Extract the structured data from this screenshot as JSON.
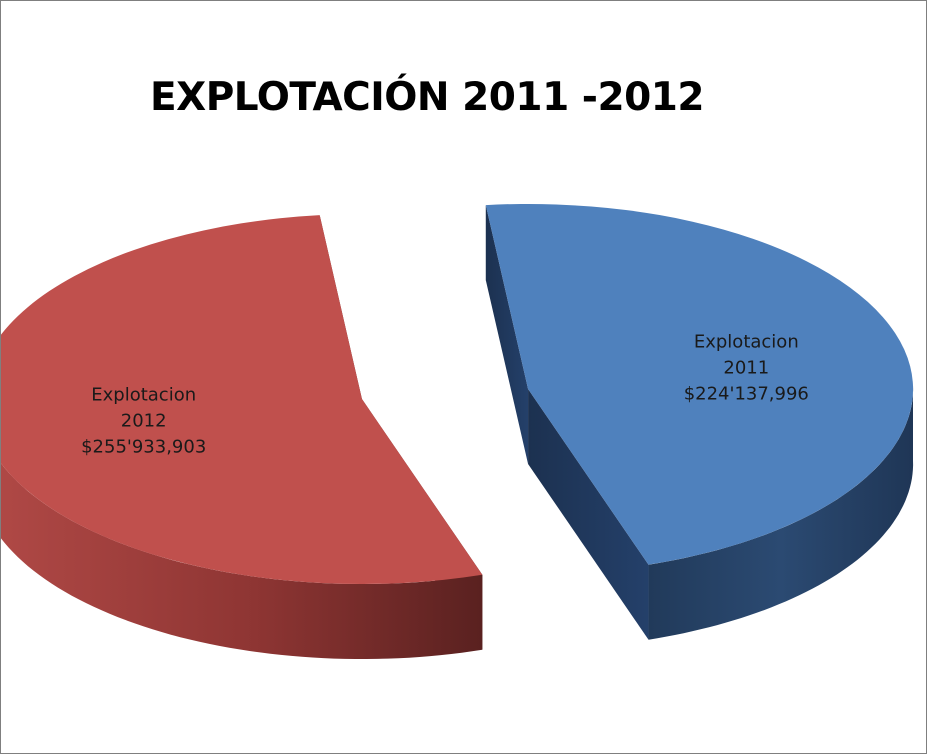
{
  "chart_data": {
    "type": "pie",
    "title": "EXPLOTACIÓN 2011 -2012",
    "style": "3d-exploded",
    "slices": [
      {
        "name": "Explotacion 2012",
        "value": 255933903,
        "label_lines": [
          "Explotacion",
          "2012",
          "$255'933,903"
        ],
        "color_top": "#c0504d",
        "color_side_light": "#a84442",
        "color_side_dark": "#632523"
      },
      {
        "name": "Explotacion 2011",
        "value": 224137996,
        "label_lines": [
          "Explotacion",
          "2011",
          "$224'137,996"
        ],
        "color_top": "#4f81bd",
        "color_side_light": "#2c4d75",
        "color_side_dark": "#1a2f4a"
      }
    ],
    "legend": "none"
  }
}
